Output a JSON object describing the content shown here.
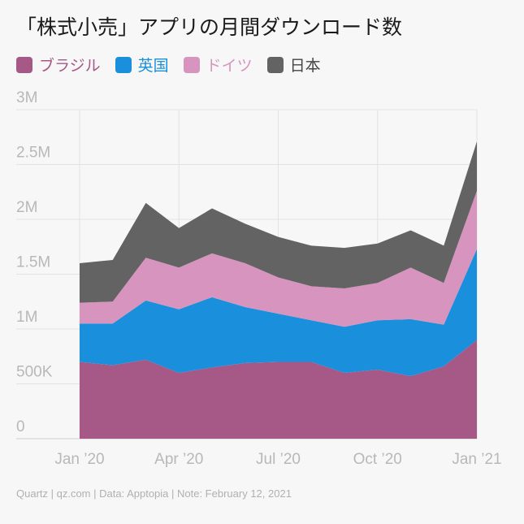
{
  "title": "「株式小売」アプリの月間ダウンロード数",
  "footer": "Quartz | qz.com | Data: Apptopia | Note: February 12, 2021",
  "chart_data": {
    "type": "area",
    "stacked": true,
    "title": "「株式小売」アプリの月間ダウンロード数",
    "xlabel": "",
    "ylabel": "",
    "x": [
      "2020-01",
      "2020-02",
      "2020-03",
      "2020-04",
      "2020-05",
      "2020-06",
      "2020-07",
      "2020-08",
      "2020-09",
      "2020-10",
      "2020-11",
      "2020-12",
      "2021-01"
    ],
    "xticks": [
      "Jan ’20",
      "Apr ’20",
      "Jul ’20",
      "Oct ’20",
      "Jan ’21"
    ],
    "yticks": [
      "0",
      "500K",
      "1M",
      "1.5M",
      "2M",
      "2.5M",
      "3M"
    ],
    "ylim": [
      0,
      3000000
    ],
    "grid": true,
    "legend_position": "top-left",
    "series": [
      {
        "name": "ブラジル",
        "color": "#a65886",
        "values": [
          700000,
          670000,
          720000,
          600000,
          650000,
          690000,
          700000,
          700000,
          600000,
          630000,
          570000,
          660000,
          900000
        ]
      },
      {
        "name": "英国",
        "color": "#1a8fdb",
        "values": [
          350000,
          380000,
          540000,
          580000,
          640000,
          510000,
          440000,
          380000,
          420000,
          450000,
          520000,
          380000,
          830000
        ]
      },
      {
        "name": "ドイツ",
        "color": "#d694be",
        "values": [
          190000,
          200000,
          390000,
          380000,
          400000,
          400000,
          330000,
          310000,
          350000,
          340000,
          470000,
          380000,
          530000
        ]
      },
      {
        "name": "日本",
        "color": "#636363",
        "values": [
          360000,
          380000,
          500000,
          360000,
          410000,
          360000,
          370000,
          370000,
          370000,
          360000,
          340000,
          340000,
          450000
        ]
      }
    ]
  }
}
